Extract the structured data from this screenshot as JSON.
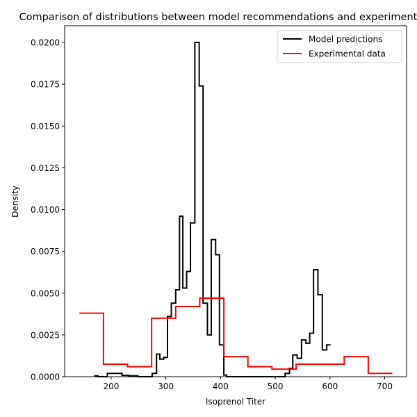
{
  "chart_data": {
    "type": "step-histogram",
    "title": "Comparison of distributions between model recommendations and experimental data",
    "xlabel": "Isoprenol Titer",
    "ylabel": "Density",
    "xlim": [
      115,
      740
    ],
    "ylim": [
      0,
      0.021
    ],
    "xticks": [
      200,
      300,
      400,
      500,
      600,
      700
    ],
    "yticks": [
      0.0,
      0.0025,
      0.005,
      0.0075,
      0.01,
      0.0125,
      0.015,
      0.0175,
      0.02
    ],
    "ytick_labels": [
      "0.0000",
      "0.0025",
      "0.0050",
      "0.0075",
      "0.0100",
      "0.0125",
      "0.0150",
      "0.0175",
      "0.0200"
    ],
    "grid": false,
    "legend": {
      "position": "upper-right",
      "entries": [
        {
          "name": "Model predictions",
          "color": "#000000"
        },
        {
          "name": "Experimental data",
          "color": "#ff0000"
        }
      ]
    },
    "series": [
      {
        "name": "Model predictions",
        "color": "#000000",
        "edges": [
          169,
          176,
          193,
          206,
          220,
          232,
          249,
          263,
          275,
          283,
          289,
          296,
          303,
          310,
          318,
          325,
          331,
          338,
          345,
          353,
          361,
          368,
          376,
          383,
          391,
          398,
          406,
          411,
          423,
          436,
          450,
          465,
          480,
          495,
          510,
          518,
          526,
          532,
          540,
          548,
          556,
          563,
          570,
          578,
          586,
          594,
          601
        ],
        "values": [
          5e-05,
          0.0,
          0.0002,
          0.0002,
          8e-05,
          5e-05,
          0.0,
          0.0,
          0.0002,
          0.00135,
          0.00105,
          0.00115,
          0.0036,
          0.0044,
          0.0052,
          0.0096,
          0.0053,
          0.0063,
          0.0092,
          0.02,
          0.0174,
          0.0044,
          0.0025,
          0.0082,
          0.0073,
          0.0019,
          0.0001,
          0.0,
          0.0,
          0.0,
          0.0,
          0.0,
          0.0,
          0.0,
          0.0,
          0.0002,
          0.0005,
          0.0013,
          0.0011,
          0.0022,
          0.002,
          0.0026,
          0.0064,
          0.0049,
          0.0016,
          0.0019
        ]
      },
      {
        "name": "Experimental data",
        "color": "#ff0000",
        "edges": [
          142,
          186,
          230,
          274,
          318,
          362,
          406,
          450,
          494,
          538,
          582,
          626,
          670,
          714
        ],
        "values": [
          0.0038,
          0.00075,
          0.0006,
          0.0035,
          0.0042,
          0.0047,
          0.0012,
          0.0006,
          0.00045,
          0.00075,
          0.00075,
          0.0012,
          0.0002
        ]
      }
    ]
  }
}
